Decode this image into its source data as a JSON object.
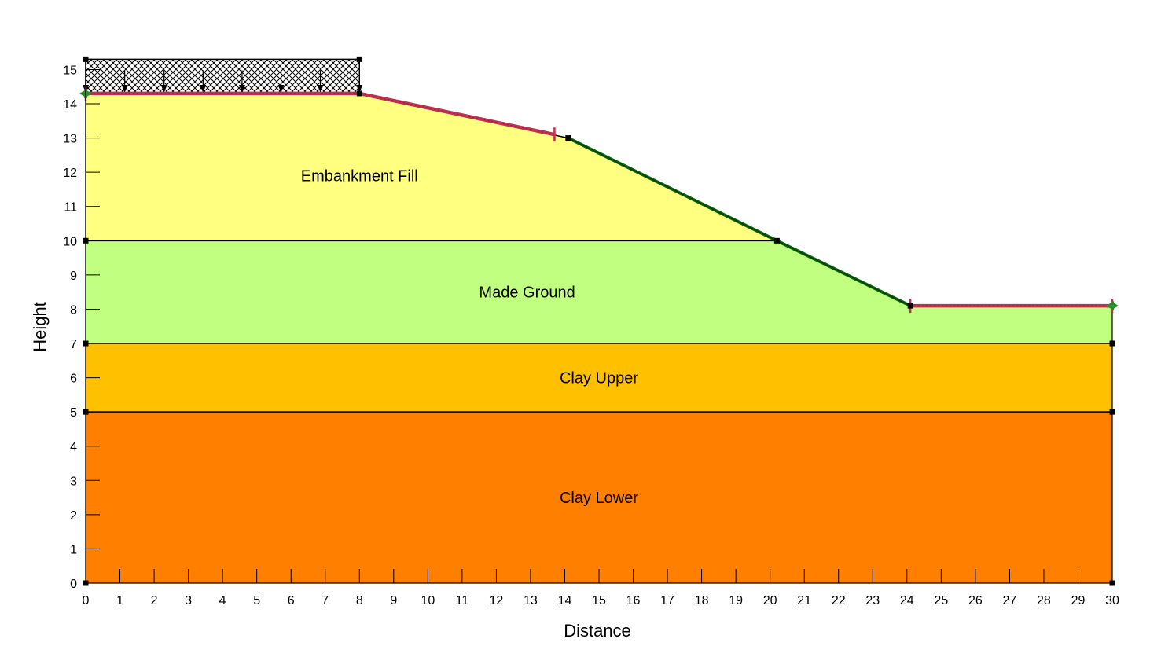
{
  "chart_data": {
    "type": "slope-stability-section",
    "xlabel": "Distance",
    "ylabel": "Height",
    "xlim": [
      0,
      30
    ],
    "ylim": [
      0,
      15
    ],
    "x_ticks": [
      "0",
      "1",
      "2",
      "3",
      "4",
      "5",
      "6",
      "7",
      "8",
      "9",
      "10",
      "11",
      "12",
      "13",
      "14",
      "15",
      "16",
      "17",
      "18",
      "19",
      "20",
      "21",
      "22",
      "23",
      "24",
      "25",
      "26",
      "27",
      "28",
      "29",
      "30"
    ],
    "y_ticks": [
      "0",
      "1",
      "2",
      "3",
      "4",
      "5",
      "6",
      "7",
      "8",
      "9",
      "10",
      "11",
      "12",
      "13",
      "14",
      "15"
    ],
    "regions": [
      {
        "name": "Clay Lower",
        "color": "#ff8000",
        "polygon": [
          [
            0,
            0
          ],
          [
            30,
            0
          ],
          [
            30,
            5
          ],
          [
            0,
            5
          ]
        ],
        "label_at": [
          15,
          2.5
        ]
      },
      {
        "name": "Clay Upper",
        "color": "#ffc000",
        "polygon": [
          [
            0,
            5
          ],
          [
            30,
            5
          ],
          [
            30,
            7
          ],
          [
            0,
            7
          ]
        ],
        "label_at": [
          15,
          6
        ]
      },
      {
        "name": "Made Ground",
        "color": "#c0ff80",
        "polygon": [
          [
            0,
            7
          ],
          [
            30,
            7
          ],
          [
            30,
            8.1
          ],
          [
            24.1,
            8.1
          ],
          [
            20.2,
            10
          ],
          [
            0,
            10
          ]
        ],
        "label_at": [
          12.9,
          8.5
        ]
      },
      {
        "name": "Embankment Fill",
        "color": "#ffff80",
        "polygon": [
          [
            0,
            10
          ],
          [
            20.2,
            10
          ],
          [
            14.1,
            13
          ],
          [
            8,
            14.3
          ],
          [
            0,
            14.3
          ]
        ],
        "label_at": [
          8,
          11.9
        ]
      }
    ],
    "ground_surface": [
      [
        0,
        14.3
      ],
      [
        8,
        14.3
      ],
      [
        14.1,
        13
      ],
      [
        20.2,
        10
      ],
      [
        24.1,
        8.1
      ],
      [
        30,
        8.1
      ]
    ],
    "layer_boundaries": [
      [
        [
          0,
          10
        ],
        [
          20.2,
          10
        ]
      ],
      [
        [
          0,
          7
        ],
        [
          30,
          7
        ]
      ],
      [
        [
          0,
          5
        ],
        [
          30,
          5
        ]
      ]
    ],
    "surcharge_load": {
      "x": [
        0,
        8
      ],
      "y": [
        14.3,
        15.3
      ],
      "arrow_x": [
        0,
        1.14,
        2.29,
        3.43,
        4.57,
        5.71,
        6.86,
        8
      ]
    },
    "search_limits": [
      {
        "from": [
          0,
          14.3
        ],
        "to": [
          13.7,
          13.1
        ],
        "color": "#c03050"
      },
      {
        "from": [
          24.1,
          8.1
        ],
        "to": [
          30,
          8.1
        ],
        "color": "#c03050"
      }
    ],
    "slope_segment": {
      "points": [
        [
          14.1,
          13
        ],
        [
          20.2,
          10
        ],
        [
          24.1,
          8.1
        ]
      ],
      "color": "#007000"
    },
    "boundary_points": [
      [
        0,
        0
      ],
      [
        30,
        0
      ],
      [
        0,
        5
      ],
      [
        30,
        5
      ],
      [
        0,
        7
      ],
      [
        30,
        7
      ],
      [
        0,
        10
      ],
      [
        20.2,
        10
      ],
      [
        14.1,
        13
      ],
      [
        24.1,
        8.1
      ],
      [
        8,
        14.3
      ],
      [
        0,
        15.3
      ],
      [
        8,
        15.3
      ]
    ],
    "colors": {
      "outline": "#000000",
      "search_limit": "#c03050",
      "slope": "#007000",
      "end_marker": "#2e8b2e"
    }
  }
}
